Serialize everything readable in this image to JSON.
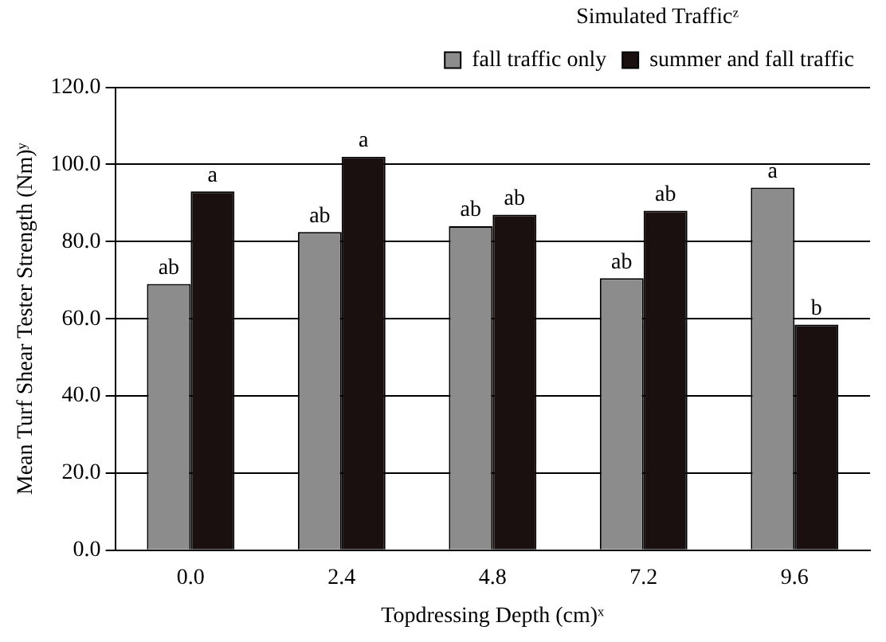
{
  "chart_data": {
    "type": "bar",
    "xlabel": "Topdressing Depth (cm)ˣ",
    "ylabel": "Mean Turf Shear Tester Strength (Nm)ʸ",
    "legend_title": "Simulated Trafficᶻ",
    "legend": "top right",
    "grid": "y",
    "categories": [
      "0.0",
      "2.4",
      "4.8",
      "7.2",
      "9.6"
    ],
    "ylim": [
      0,
      120
    ],
    "yticks": [
      {
        "value": 0,
        "label": "0.0"
      },
      {
        "value": 20,
        "label": "20.0"
      },
      {
        "value": 40,
        "label": "40.0"
      },
      {
        "value": 60,
        "label": "60.0"
      },
      {
        "value": 80,
        "label": "80.0"
      },
      {
        "value": 100,
        "label": "100.0"
      },
      {
        "value": 120,
        "label": "120.0"
      }
    ],
    "series": [
      {
        "name": "fall traffic only",
        "color": "#8c8c8c",
        "values": [
          69,
          82.5,
          84,
          70.5,
          94
        ],
        "value_labels": [
          "ab",
          "ab",
          "ab",
          "ab",
          "a"
        ]
      },
      {
        "name": "summer and fall traffic",
        "color": "#1a1010",
        "values": [
          93,
          102,
          87,
          88,
          58.5
        ],
        "value_labels": [
          "a",
          "a",
          "ab",
          "ab",
          "b"
        ]
      }
    ]
  }
}
